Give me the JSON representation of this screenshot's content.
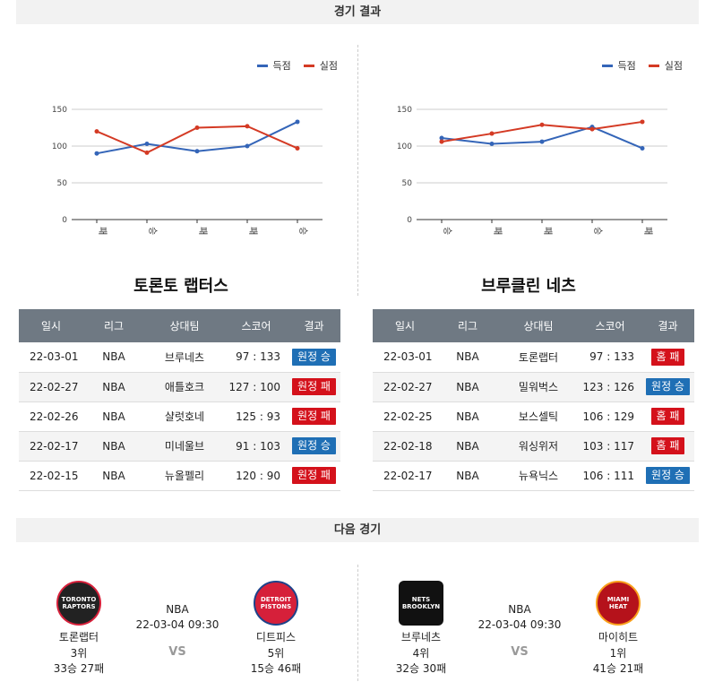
{
  "sections": {
    "results_title": "경기 결과",
    "next_title": "다음 경기"
  },
  "legend": {
    "scored": "득점",
    "conceded": "실점"
  },
  "colors": {
    "scored": "#3465b8",
    "conceded": "#d43a24",
    "win_badge": "#1f6fb5",
    "loss_badge": "#d4111b"
  },
  "table_headers": [
    "일시",
    "리그",
    "상대팀",
    "스코어",
    "결과"
  ],
  "left_team": {
    "name": "토론토 랩터스",
    "chart_data": {
      "type": "line",
      "categories": [
        "패",
        "승",
        "패",
        "패",
        "승"
      ],
      "series": [
        {
          "name": "득점",
          "values": [
            90,
            103,
            93,
            100,
            133
          ]
        },
        {
          "name": "실점",
          "values": [
            120,
            91,
            125,
            127,
            97
          ]
        }
      ],
      "yticks": [
        0,
        50,
        100,
        150
      ],
      "ylim": [
        0,
        150
      ]
    },
    "rows": [
      {
        "date": "22-03-01",
        "league": "NBA",
        "opponent": "브루네츠",
        "score": "97 : 133",
        "result": "원정 승",
        "type": "win"
      },
      {
        "date": "22-02-27",
        "league": "NBA",
        "opponent": "애틀호크",
        "score": "127 : 100",
        "result": "원정 패",
        "type": "loss"
      },
      {
        "date": "22-02-26",
        "league": "NBA",
        "opponent": "샬럿호네",
        "score": "125 : 93",
        "result": "원정 패",
        "type": "loss"
      },
      {
        "date": "22-02-17",
        "league": "NBA",
        "opponent": "미네울브",
        "score": "91 : 103",
        "result": "원정 승",
        "type": "win"
      },
      {
        "date": "22-02-15",
        "league": "NBA",
        "opponent": "뉴올펠리",
        "score": "120 : 90",
        "result": "원정 패",
        "type": "loss"
      }
    ]
  },
  "right_team": {
    "name": "브루클린 네츠",
    "chart_data": {
      "type": "line",
      "categories": [
        "승",
        "패",
        "패",
        "승",
        "패"
      ],
      "series": [
        {
          "name": "득점",
          "values": [
            111,
            103,
            106,
            126,
            97
          ]
        },
        {
          "name": "실점",
          "values": [
            106,
            117,
            129,
            123,
            133
          ]
        }
      ],
      "yticks": [
        0,
        50,
        100,
        150
      ],
      "ylim": [
        0,
        150
      ]
    },
    "rows": [
      {
        "date": "22-03-01",
        "league": "NBA",
        "opponent": "토론랩터",
        "score": "97 : 133",
        "result": "홈 패",
        "type": "loss"
      },
      {
        "date": "22-02-27",
        "league": "NBA",
        "opponent": "밀워벅스",
        "score": "123 : 126",
        "result": "원정 승",
        "type": "win"
      },
      {
        "date": "22-02-25",
        "league": "NBA",
        "opponent": "보스셀틱",
        "score": "106 : 129",
        "result": "홈 패",
        "type": "loss"
      },
      {
        "date": "22-02-18",
        "league": "NBA",
        "opponent": "워싱위저",
        "score": "103 : 117",
        "result": "홈 패",
        "type": "loss"
      },
      {
        "date": "22-02-17",
        "league": "NBA",
        "opponent": "뉴욕닉스",
        "score": "106 : 111",
        "result": "원정 승",
        "type": "win"
      }
    ]
  },
  "next_matches": [
    {
      "league": "NBA",
      "time": "22-03-04 09:30",
      "vs": "VS",
      "home": {
        "name": "토론랩터",
        "rank": "3위",
        "record": "33승 27패",
        "logo_text": "TORONTO RAPTORS",
        "logo_color": "#222222",
        "logo_icon": "raptors-logo-icon"
      },
      "away": {
        "name": "디트피스",
        "rank": "5위",
        "record": "15승 46패",
        "logo_text": "DETROIT PISTONS",
        "logo_color": "#d6203a",
        "logo_icon": "pistons-logo-icon"
      }
    },
    {
      "league": "NBA",
      "time": "22-03-04 09:30",
      "vs": "VS",
      "home": {
        "name": "브루네츠",
        "rank": "4위",
        "record": "32승 30패",
        "logo_text": "NETS BROOKLYN",
        "logo_color": "#111111",
        "logo_icon": "nets-logo-icon"
      },
      "away": {
        "name": "마이히트",
        "rank": "1위",
        "record": "41승 21패",
        "logo_text": "MIAMI HEAT",
        "logo_color": "#b5121b",
        "logo_icon": "heat-logo-icon"
      }
    }
  ]
}
